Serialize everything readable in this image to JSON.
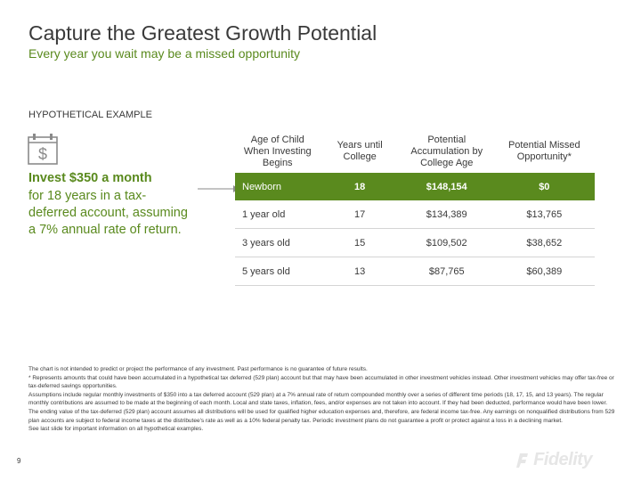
{
  "title": "Capture the Greatest Growth Potential",
  "subtitle": "Every year you wait may be a missed opportunity",
  "label": "HYPOTHETICAL EXAMPLE",
  "invest": {
    "headline": "Invest $350 a month",
    "body": "for 18 years in a tax-deferred account, assuming a 7% annual rate of return."
  },
  "table": {
    "headers": [
      "Age of Child When Investing Begins",
      "Years until College",
      "Potential Accumulation by College Age",
      "Potential Missed Opportunity*"
    ],
    "rows": [
      [
        "Newborn",
        "18",
        "$148,154",
        "$0"
      ],
      [
        "1 year old",
        "17",
        "$134,389",
        "$13,765"
      ],
      [
        "3 years old",
        "15",
        "$109,502",
        "$38,652"
      ],
      [
        "5 years old",
        "13",
        "$87,765",
        "$60,389"
      ]
    ]
  },
  "footnotes": [
    "The chart is not intended to predict or project the performance of any investment. Past performance is no guarantee of future results.",
    "* Represents amounts that could have been accumulated in a hypothetical tax deferred (529 plan) account but that may have been accumulated in other investment vehicles instead. Other investment vehicles may offer tax-free or tax-deferred savings opportunities.",
    "Assumptions include regular monthly investments of $350 into a tax deferred account (529 plan) at a 7% annual rate of return compounded monthly over a series of different time periods (18, 17, 15, and 13 years). The regular monthly contributions are assumed to be made at the beginning of each month. Local and state taxes, inflation, fees, and/or expenses are not taken into account. If they had been deducted, performance would have been lower. The ending value of the tax-deferred (529 plan) account assumes all distributions will be used for qualified higher education expenses and, therefore, are federal income tax-free. Any earnings on nonqualified distributions from 529 plan accounts are subject to federal income taxes at the distributee's rate as well as a 10% federal penalty tax. Periodic investment plans do not guarantee a profit or protect against a loss in a declining market.",
    "See last slide for important information on all hypothetical examples."
  ],
  "page_number": "9",
  "logo": {
    "text": "Fidelity",
    "color": "#e6e6e6"
  },
  "colors": {
    "accent": "#5a8a1e",
    "text": "#3a3a3a"
  }
}
